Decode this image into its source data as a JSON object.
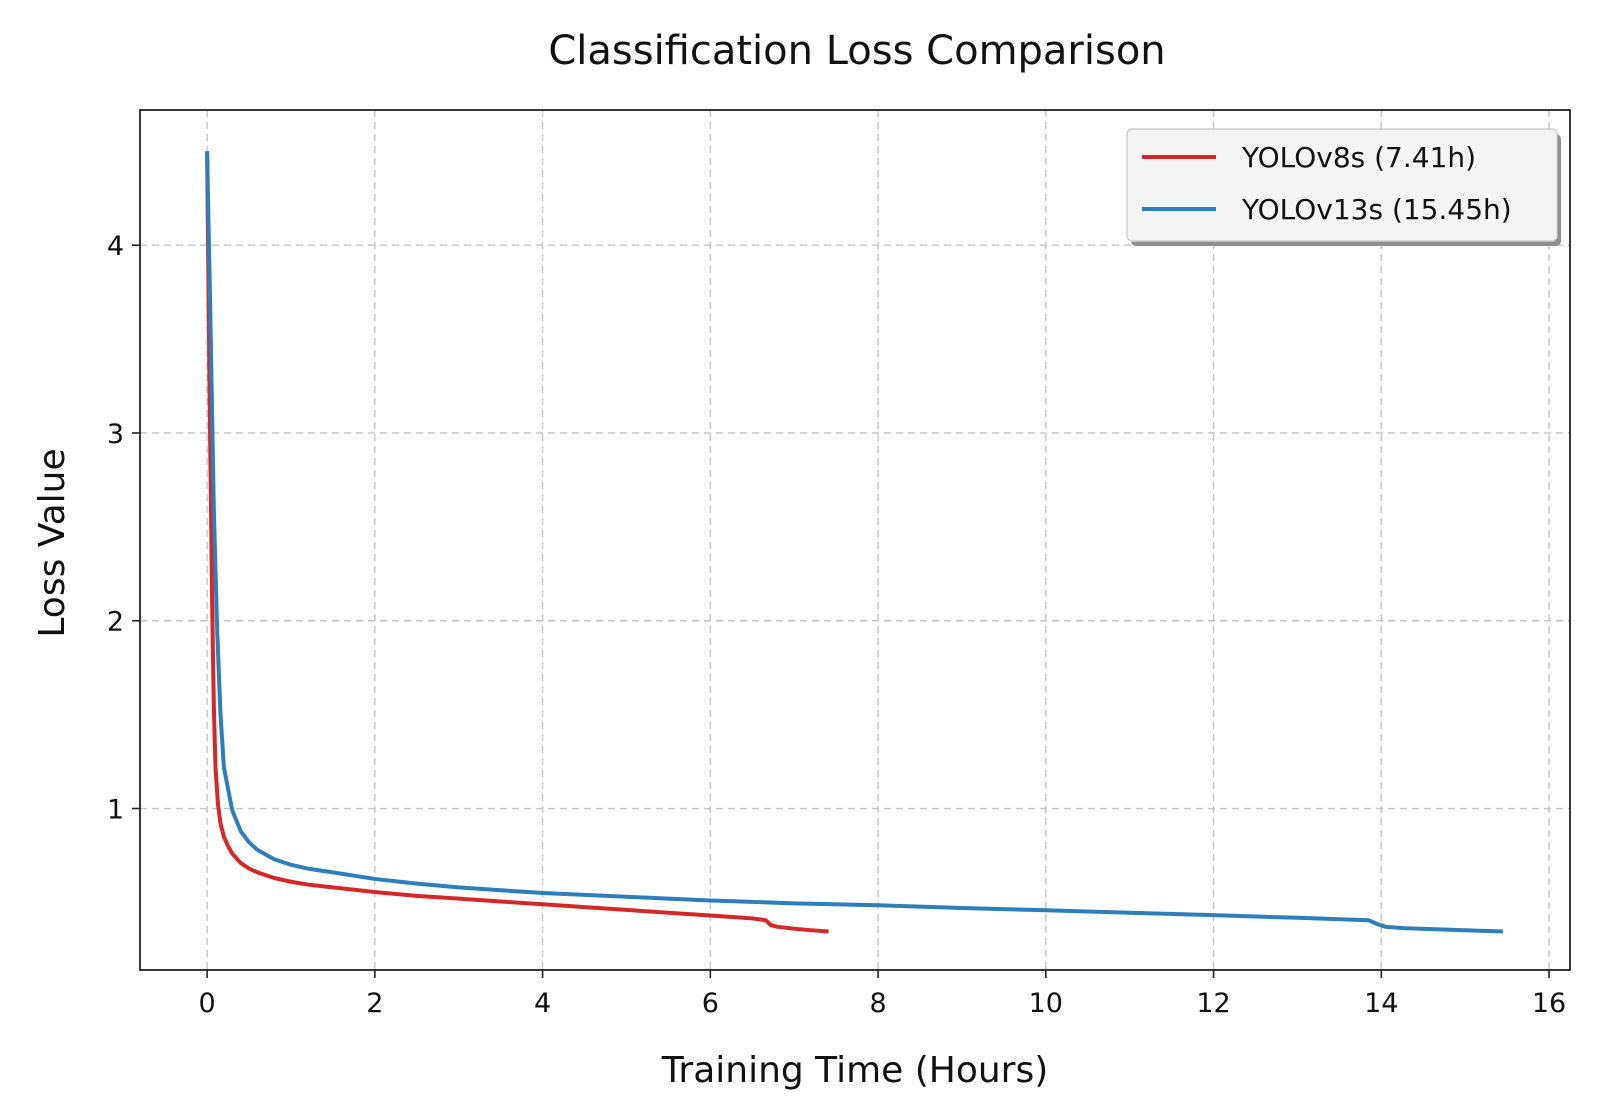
{
  "chart_data": {
    "type": "line",
    "title": "Classification Loss Comparison",
    "xlabel": "Training Time (Hours)",
    "ylabel": "Loss Value",
    "xlim": [
      -0.8,
      16.25
    ],
    "ylim": [
      0.14,
      4.72
    ],
    "xticks": [
      0,
      2,
      4,
      6,
      8,
      10,
      12,
      14,
      16
    ],
    "yticks": [
      1,
      2,
      3,
      4
    ],
    "grid": true,
    "legend_position": "top-right",
    "series": [
      {
        "name": "YOLOv8s (7.41h)",
        "color": "#d62728",
        "x": [
          0.0,
          0.03,
          0.06,
          0.08,
          0.1,
          0.13,
          0.16,
          0.2,
          0.25,
          0.3,
          0.4,
          0.5,
          0.6,
          0.8,
          1.0,
          1.2,
          1.5,
          2.0,
          2.5,
          3.0,
          3.5,
          4.0,
          4.5,
          5.0,
          5.5,
          6.0,
          6.5,
          6.66,
          6.72,
          6.8,
          7.0,
          7.2,
          7.41
        ],
        "y": [
          4.5,
          3.2,
          2.1,
          1.55,
          1.22,
          1.02,
          0.92,
          0.85,
          0.8,
          0.76,
          0.71,
          0.68,
          0.66,
          0.63,
          0.61,
          0.595,
          0.58,
          0.555,
          0.535,
          0.52,
          0.505,
          0.49,
          0.475,
          0.46,
          0.445,
          0.43,
          0.415,
          0.405,
          0.38,
          0.37,
          0.36,
          0.352,
          0.345
        ]
      },
      {
        "name": "YOLOv13s (15.45h)",
        "color": "#2e7ebc",
        "x": [
          0.0,
          0.04,
          0.08,
          0.12,
          0.16,
          0.2,
          0.3,
          0.4,
          0.5,
          0.6,
          0.8,
          1.0,
          1.2,
          1.5,
          2.0,
          2.5,
          3.0,
          3.5,
          4.0,
          5.0,
          6.0,
          7.0,
          8.0,
          9.0,
          10.0,
          11.0,
          12.0,
          13.0,
          13.85,
          13.95,
          14.05,
          14.3,
          15.0,
          15.45
        ],
        "y": [
          4.5,
          3.6,
          2.6,
          1.95,
          1.5,
          1.22,
          0.99,
          0.88,
          0.82,
          0.78,
          0.73,
          0.7,
          0.68,
          0.66,
          0.625,
          0.6,
          0.58,
          0.565,
          0.55,
          0.53,
          0.51,
          0.495,
          0.485,
          0.47,
          0.458,
          0.445,
          0.432,
          0.418,
          0.405,
          0.385,
          0.37,
          0.362,
          0.352,
          0.345
        ]
      }
    ]
  }
}
